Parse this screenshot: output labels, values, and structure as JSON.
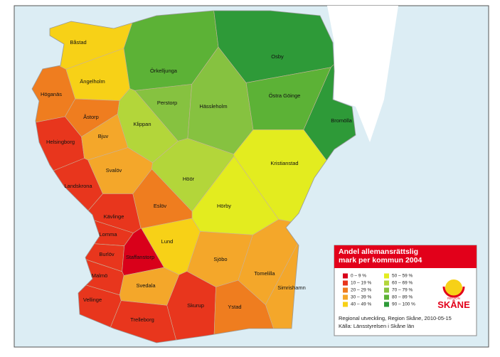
{
  "map": {
    "regions": [
      {
        "name": "Båstad",
        "color": "#f7d117"
      },
      {
        "name": "Ängelholm",
        "color": "#f7d117"
      },
      {
        "name": "Höganäs",
        "color": "#ef7d1f"
      },
      {
        "name": "Helsingborg",
        "color": "#e8361d"
      },
      {
        "name": "Åstorp",
        "color": "#ef7d1f"
      },
      {
        "name": "Bjuv",
        "color": "#f4a72a"
      },
      {
        "name": "Klippan",
        "color": "#b3d63a"
      },
      {
        "name": "Perstorp",
        "color": "#86c240"
      },
      {
        "name": "Örkelljunga",
        "color": "#5cb236"
      },
      {
        "name": "Hässleholm",
        "color": "#86c240"
      },
      {
        "name": "Osby",
        "color": "#2e9a38"
      },
      {
        "name": "Östra Göinge",
        "color": "#5cb236"
      },
      {
        "name": "Bromölla",
        "color": "#2e9a38"
      },
      {
        "name": "Kristianstad",
        "color": "#e3ec1f"
      },
      {
        "name": "Svalöv",
        "color": "#f4a72a"
      },
      {
        "name": "Landskrona",
        "color": "#e8361d"
      },
      {
        "name": "Höör",
        "color": "#b3d63a"
      },
      {
        "name": "Hörby",
        "color": "#e3ec1f"
      },
      {
        "name": "Eslöv",
        "color": "#ef7d1f"
      },
      {
        "name": "Kävlinge",
        "color": "#e8361d"
      },
      {
        "name": "Lomma",
        "color": "#e8361d"
      },
      {
        "name": "Lund",
        "color": "#f7d117"
      },
      {
        "name": "Burlöv",
        "color": "#e8361d"
      },
      {
        "name": "Staffanstorp",
        "color": "#d9001a"
      },
      {
        "name": "Malmö",
        "color": "#e8361d"
      },
      {
        "name": "Vellinge",
        "color": "#e8361d"
      },
      {
        "name": "Svedala",
        "color": "#f4a72a"
      },
      {
        "name": "Skurup",
        "color": "#e8361d"
      },
      {
        "name": "Trelleborg",
        "color": "#e8361d"
      },
      {
        "name": "Sjöbo",
        "color": "#f4a72a"
      },
      {
        "name": "Ystad",
        "color": "#ef7d1f"
      },
      {
        "name": "Tomelilla",
        "color": "#f4a72a"
      },
      {
        "name": "Simrishamn",
        "color": "#f4a72a"
      }
    ]
  },
  "legend": {
    "title": "Andel allemansrättslig mark per kommun 2004",
    "items": [
      {
        "label": "0 – 9 %",
        "color": "#d9001a"
      },
      {
        "label": "10 – 19 %",
        "color": "#e8361d"
      },
      {
        "label": "20 – 29 %",
        "color": "#ef7d1f"
      },
      {
        "label": "30 – 39 %",
        "color": "#f4a72a"
      },
      {
        "label": "40 – 49 %",
        "color": "#f7d117"
      },
      {
        "label": "50 – 59 %",
        "color": "#e3ec1f"
      },
      {
        "label": "60 – 69 %",
        "color": "#b3d63a"
      },
      {
        "label": "70 – 79 %",
        "color": "#86c240"
      },
      {
        "label": "80 – 89 %",
        "color": "#5cb236"
      },
      {
        "label": "90 – 100 %",
        "color": "#2e9a38"
      }
    ]
  },
  "source": [
    "Regional utveckling, Region Skåne, 2010-05-15",
    "Källa: Länsstyrelsen i Skåne län"
  ],
  "logo": {
    "top": "REGION",
    "name": "SKÅNE"
  }
}
